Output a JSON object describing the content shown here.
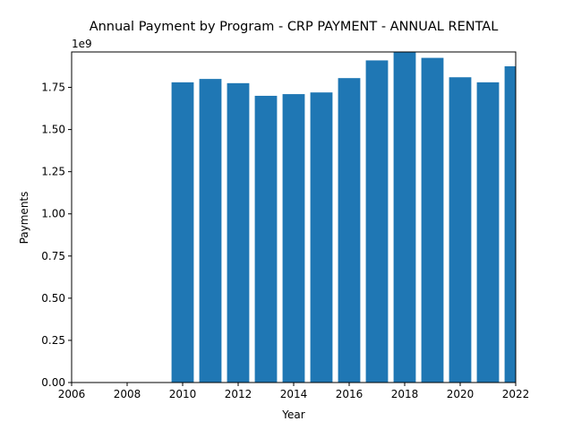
{
  "chart_data": {
    "type": "bar",
    "title": "Annual Payment by Program - CRP PAYMENT - ANNUAL RENTAL",
    "xlabel": "Year",
    "ylabel": "Payments",
    "y_offset_label": "1e9",
    "x": [
      2010,
      2011,
      2012,
      2013,
      2014,
      2015,
      2016,
      2017,
      2018,
      2019,
      2020,
      2021,
      2022
    ],
    "values": [
      1780000000,
      1800000000,
      1775000000,
      1700000000,
      1710000000,
      1720000000,
      1805000000,
      1910000000,
      1960000000,
      1925000000,
      1810000000,
      1780000000,
      1875000000
    ],
    "xlim": [
      2006,
      2022
    ],
    "ylim": [
      0,
      1960000000
    ],
    "xticks": [
      "2006",
      "2008",
      "2010",
      "2012",
      "2014",
      "2016",
      "2018",
      "2020",
      "2022"
    ],
    "yticks": [
      "0.00",
      "0.25",
      "0.50",
      "0.75",
      "1.00",
      "1.25",
      "1.50",
      "1.75"
    ],
    "bar_color": "#1f77b4",
    "grid": false,
    "legend": "none"
  }
}
